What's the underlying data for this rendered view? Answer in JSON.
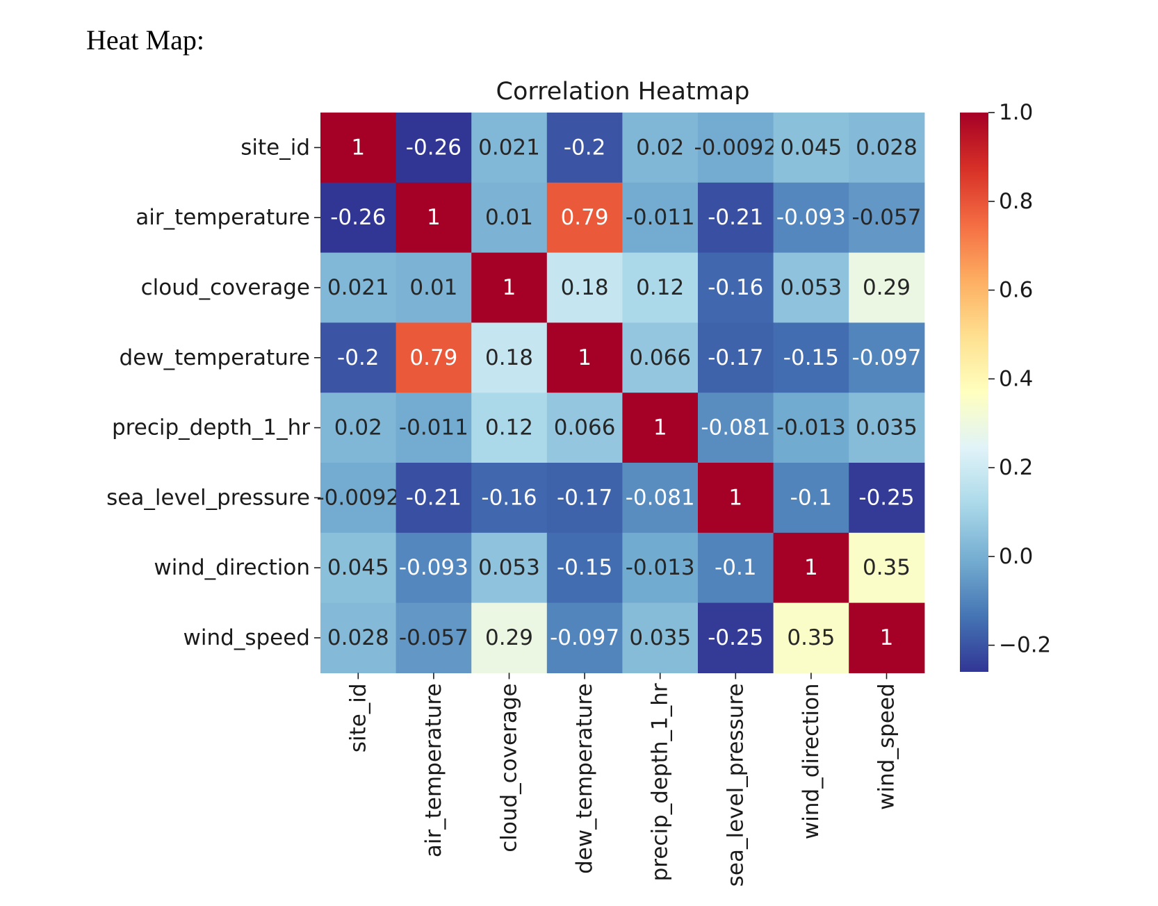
{
  "document": {
    "heading": "Heat Map:"
  },
  "colors": {
    "text_dark": "#262626",
    "text_light": "#ffffff",
    "tick": "#1a1a1a"
  },
  "chart_data": {
    "type": "heatmap",
    "title": "Correlation Heatmap",
    "colormap": "RdYlBu_r",
    "vmin": -0.26,
    "vmax": 1.0,
    "labels": [
      "site_id",
      "air_temperature",
      "cloud_coverage",
      "dew_temperature",
      "precip_depth_1_hr",
      "sea_level_pressure",
      "wind_direction",
      "wind_speed"
    ],
    "values": [
      [
        1,
        -0.26,
        0.021,
        -0.2,
        0.02,
        -0.0092,
        0.045,
        0.028
      ],
      [
        -0.26,
        1,
        0.01,
        0.79,
        -0.011,
        -0.21,
        -0.093,
        -0.057
      ],
      [
        0.021,
        0.01,
        1,
        0.18,
        0.12,
        -0.16,
        0.053,
        0.29
      ],
      [
        -0.2,
        0.79,
        0.18,
        1,
        0.066,
        -0.17,
        -0.15,
        -0.097
      ],
      [
        0.02,
        -0.011,
        0.12,
        0.066,
        1,
        -0.081,
        -0.013,
        0.035
      ],
      [
        -0.0092,
        -0.21,
        -0.16,
        -0.17,
        -0.081,
        1,
        -0.1,
        -0.25
      ],
      [
        0.045,
        -0.093,
        0.053,
        -0.15,
        -0.013,
        -0.1,
        1,
        0.35
      ],
      [
        0.028,
        -0.057,
        0.29,
        -0.097,
        0.035,
        -0.25,
        0.35,
        1
      ]
    ],
    "annotations": [
      [
        "1",
        "-0.26",
        "0.021",
        "-0.2",
        "0.02",
        "-0.0092",
        "0.045",
        "0.028"
      ],
      [
        "-0.26",
        "1",
        "0.01",
        "0.79",
        "-0.011",
        "-0.21",
        "-0.093",
        "-0.057"
      ],
      [
        "0.021",
        "0.01",
        "1",
        "0.18",
        "0.12",
        "-0.16",
        "0.053",
        "0.29"
      ],
      [
        "-0.2",
        "0.79",
        "0.18",
        "1",
        "0.066",
        "-0.17",
        "-0.15",
        "-0.097"
      ],
      [
        "0.02",
        "-0.011",
        "0.12",
        "0.066",
        "1",
        "-0.081",
        "-0.013",
        "0.035"
      ],
      [
        "-0.0092",
        "-0.21",
        "-0.16",
        "-0.17",
        "-0.081",
        "1",
        "-0.1",
        "-0.25"
      ],
      [
        "0.045",
        "-0.093",
        "0.053",
        "-0.15",
        "-0.013",
        "-0.1",
        "1",
        "0.35"
      ],
      [
        "0.028",
        "-0.057",
        "0.29",
        "-0.097",
        "0.035",
        "-0.25",
        "0.35",
        "1"
      ]
    ],
    "colorbar": {
      "ticks": [
        1.0,
        0.8,
        0.6,
        0.4,
        0.2,
        0.0,
        -0.2
      ],
      "tick_labels": [
        "1.0",
        "0.8",
        "0.6",
        "0.4",
        "0.2",
        "0.0",
        "−0.2"
      ]
    }
  }
}
